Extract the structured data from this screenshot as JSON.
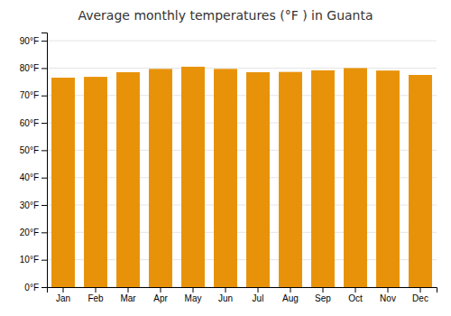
{
  "chart_data": {
    "type": "bar",
    "title": "Average monthly temperatures (°F ) in Guanta",
    "categories": [
      "Jan",
      "Feb",
      "Mar",
      "Apr",
      "May",
      "Jun",
      "Jul",
      "Aug",
      "Sep",
      "Oct",
      "Nov",
      "Dec"
    ],
    "values": [
      76.5,
      76.8,
      78.5,
      79.7,
      80.5,
      79.7,
      78.5,
      78.6,
      79.2,
      80.0,
      79.1,
      77.5
    ],
    "color": "#E8920A",
    "ylim": [
      0,
      93
    ],
    "yticks": [
      {
        "value": 0,
        "label": "0°F"
      },
      {
        "value": 10,
        "label": "10°F"
      },
      {
        "value": 20,
        "label": "20°F"
      },
      {
        "value": 30,
        "label": "30°F"
      },
      {
        "value": 40,
        "label": "40°F"
      },
      {
        "value": 50,
        "label": "50°F"
      },
      {
        "value": 60,
        "label": "60°F"
      },
      {
        "value": 70,
        "label": "70°F"
      },
      {
        "value": 80,
        "label": "80°F"
      },
      {
        "value": 90,
        "label": "90°F"
      }
    ],
    "grid": true
  }
}
